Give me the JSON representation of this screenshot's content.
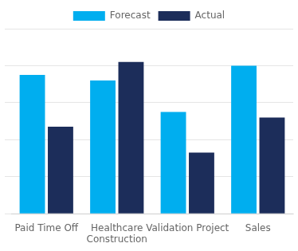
{
  "chart_data": {
    "type": "bar",
    "categories": [
      "Paid Time Off",
      "Healthcare\nConstruction",
      "Validation Project",
      "Sales"
    ],
    "series": [
      {
        "name": "Forecast",
        "color": "#00AEEF",
        "values": [
          75,
          72,
          55,
          80
        ]
      },
      {
        "name": "Actual",
        "color": "#1C2D5A",
        "values": [
          47,
          82,
          33,
          52
        ]
      }
    ],
    "ylim": [
      0,
      100
    ],
    "yticks": [
      0,
      20,
      40,
      60,
      80,
      100
    ],
    "grid": true,
    "legend": "top",
    "tick_labels": "x"
  }
}
